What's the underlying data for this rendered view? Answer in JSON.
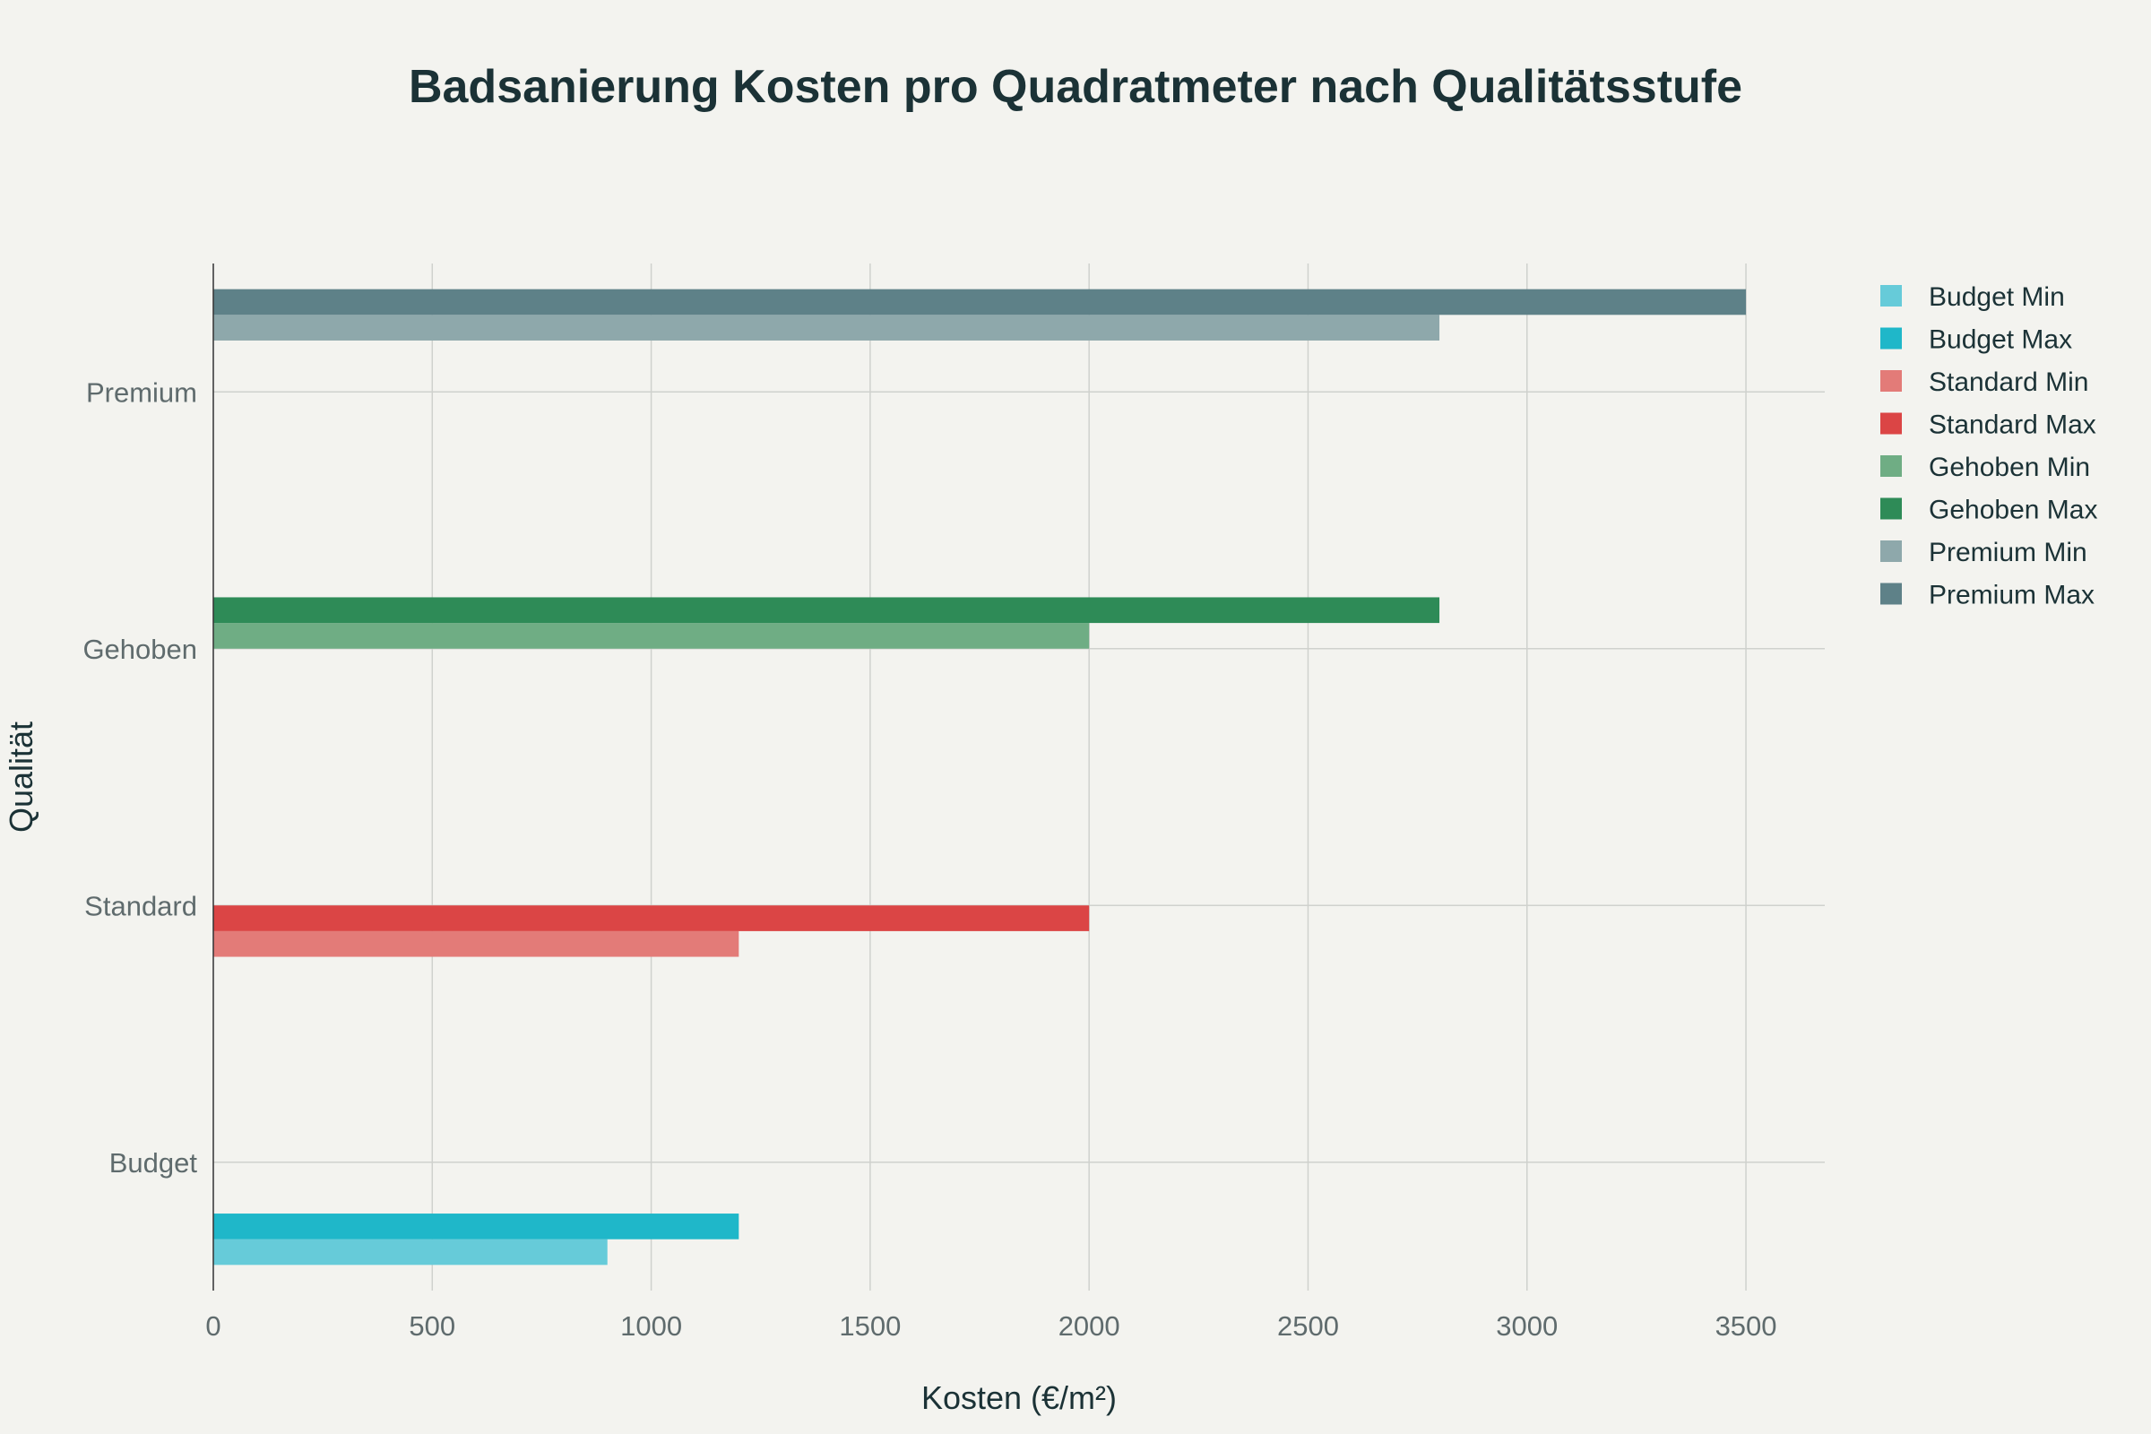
{
  "chart_data": {
    "type": "bar",
    "orientation": "horizontal",
    "title": "Badsanierung Kosten pro Quadratmeter nach Qualitätsstufe",
    "xlabel": "Kosten (€/m²)",
    "ylabel": "Qualität",
    "xlim": [
      0,
      3680
    ],
    "x_ticks": [
      0,
      500,
      1000,
      1500,
      2000,
      2500,
      3000,
      3500
    ],
    "categories": [
      "Budget",
      "Standard",
      "Gehoben",
      "Premium"
    ],
    "grid": true,
    "legend_position": "right",
    "series": [
      {
        "name": "Budget Min",
        "category": "Budget",
        "value": 900,
        "color": "#66cbd9"
      },
      {
        "name": "Budget Max",
        "category": "Budget",
        "value": 1200,
        "color": "#1fb7c9"
      },
      {
        "name": "Standard Min",
        "category": "Standard",
        "value": 1200,
        "color": "#e37b78"
      },
      {
        "name": "Standard Max",
        "category": "Standard",
        "value": 2000,
        "color": "#db4545"
      },
      {
        "name": "Gehoben Min",
        "category": "Gehoben",
        "value": 2000,
        "color": "#6fad84"
      },
      {
        "name": "Gehoben Max",
        "category": "Gehoben",
        "value": 2800,
        "color": "#2e8b57"
      },
      {
        "name": "Premium Min",
        "category": "Premium",
        "value": 2800,
        "color": "#8ea8ab"
      },
      {
        "name": "Premium Max",
        "category": "Premium",
        "value": 3500,
        "color": "#5e8188"
      }
    ]
  }
}
